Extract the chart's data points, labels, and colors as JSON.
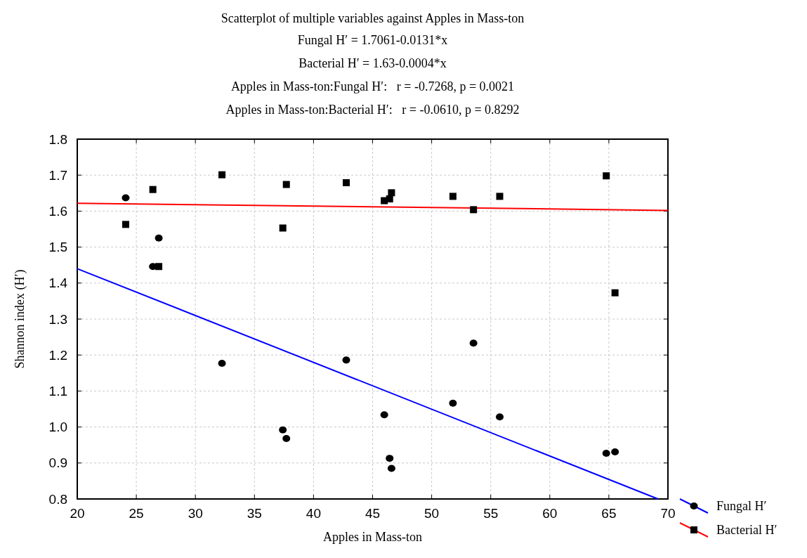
{
  "chart_data": {
    "type": "scatter",
    "title": "Scatterplot of multiple variables against Apples in Mass-ton",
    "subtitle": "Fungal H′ = 1.7061-0.0131*x\nBacterial H′ = 1.63-0.0004*x\nApples in Mass-ton:Fungal H′:   r = -0.7268, p = 0.0021\nApples in Mass-ton:Bacterial H′:   r = -0.0610, p = 0.8292",
    "xlabel": "Apples in Mass-ton",
    "ylabel": "Shannon index (H′)",
    "xlim": [
      20,
      70
    ],
    "xticks": [
      20,
      25,
      30,
      35,
      40,
      45,
      50,
      55,
      60,
      65,
      70
    ],
    "ylim": [
      0.8,
      1.8
    ],
    "yticks": [
      {
        "value": 0.8,
        "label": "0.8"
      },
      {
        "value": 0.9,
        "label": "0.9"
      },
      {
        "value": 1.0,
        "label": "1.0"
      },
      {
        "value": 1.1,
        "label": "1.1"
      },
      {
        "value": 1.2,
        "label": "1.2"
      },
      {
        "value": 1.3,
        "label": "1.3"
      },
      {
        "value": 1.4,
        "label": "1.4"
      },
      {
        "value": 1.5,
        "label": "1.5"
      },
      {
        "value": 1.6,
        "label": "1.6"
      },
      {
        "value": 1.7,
        "label": "1.7"
      },
      {
        "value": 1.8,
        "label": "1.8"
      }
    ],
    "grid": true,
    "legend": "bottom right",
    "series": [
      {
        "name": "Fungal H′",
        "marker": "circle",
        "color": "#000000",
        "x": [
          24.1,
          26.4,
          26.9,
          32.25,
          37.4,
          37.7,
          42.77,
          45.99,
          46.44,
          46.6,
          51.8,
          53.54,
          55.76,
          64.78,
          65.52
        ],
        "values": [
          1.637,
          1.446,
          1.525,
          1.177,
          0.992,
          0.968,
          1.186,
          1.034,
          0.913,
          0.885,
          1.066,
          1.233,
          1.028,
          0.927,
          0.931
        ]
      },
      {
        "type": "line",
        "color": "#0000ff",
        "x": [
          20,
          69.16
        ],
        "values": [
          1.44,
          0.8
        ]
      },
      {
        "name": "Bacterial H′",
        "marker": "square",
        "color": "#000000",
        "x": [
          24.1,
          26.4,
          26.9,
          32.25,
          37.4,
          37.7,
          42.77,
          45.99,
          46.44,
          46.6,
          51.8,
          53.54,
          55.76,
          64.78,
          65.52
        ],
        "values": [
          1.563,
          1.66,
          1.446,
          1.701,
          1.553,
          1.674,
          1.679,
          1.629,
          1.634,
          1.651,
          1.641,
          1.604,
          1.641,
          1.698,
          1.373
        ]
      },
      {
        "type": "line",
        "color": "#ff0000",
        "x": [
          20,
          70
        ],
        "values": [
          1.622,
          1.602
        ]
      }
    ]
  }
}
